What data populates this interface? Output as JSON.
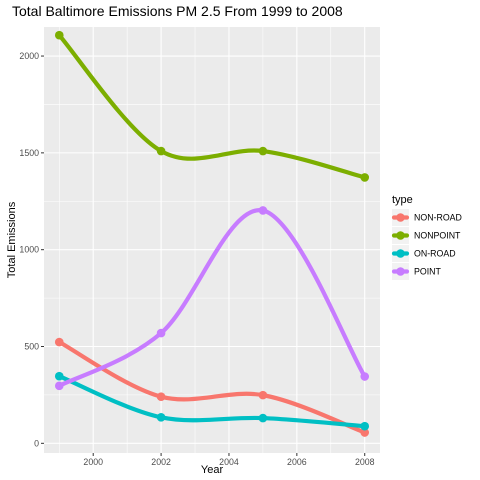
{
  "chart_data": {
    "type": "line",
    "title": "Total Baltimore Emissions PM 2.5 From 1999 to 2008",
    "xlabel": "Year",
    "ylabel": "Total Emissions",
    "xlim": [
      1998.55,
      2008.45
    ],
    "ylim": [
      -50,
      2150
    ],
    "x_ticks": [
      2000,
      2002,
      2004,
      2006,
      2008
    ],
    "y_ticks": [
      0,
      500,
      1000,
      1500,
      2000
    ],
    "x": [
      1999,
      2002,
      2005,
      2008
    ],
    "grid": true,
    "legend": {
      "title": "type",
      "position": "right"
    },
    "series": [
      {
        "name": "NON-ROAD",
        "color": "#F8766D",
        "values": [
          522.9,
          240.8,
          248.9,
          55.8
        ]
      },
      {
        "name": "NONPOINT",
        "color": "#7CAE00",
        "values": [
          2107.6,
          1509.5,
          1509.5,
          1373.2
        ]
      },
      {
        "name": "ON-ROAD",
        "color": "#00BFC4",
        "values": [
          346.8,
          134.3,
          130.4,
          88.3
        ]
      },
      {
        "name": "POINT",
        "color": "#C77CFF",
        "values": [
          296.8,
          569.3,
          1202.5,
          344.98
        ]
      }
    ]
  }
}
